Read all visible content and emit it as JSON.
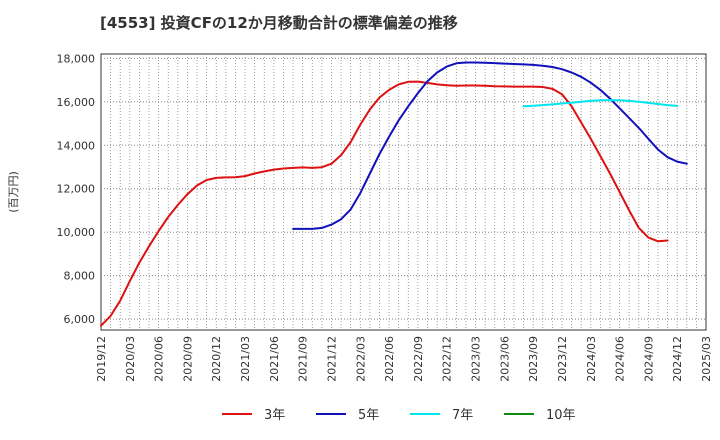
{
  "chart_data": {
    "type": "line",
    "title": "[4553]  投資CFの12か月移動合計の標準偏差の推移",
    "ylabel": "(百万円)",
    "xlabel": "",
    "ylim": [
      5500,
      18200
    ],
    "yticks": [
      6000,
      8000,
      10000,
      12000,
      14000,
      16000,
      18000
    ],
    "ytick_labels": [
      "6,000",
      "8,000",
      "10,000",
      "12,000",
      "14,000",
      "16,000",
      "18,000"
    ],
    "xlim": [
      "2019/12",
      "2025/03"
    ],
    "xtick_labels": [
      "2019/12",
      "2020/03",
      "2020/06",
      "2020/09",
      "2020/12",
      "2021/03",
      "2021/06",
      "2021/09",
      "2021/12",
      "2022/03",
      "2022/06",
      "2022/09",
      "2022/12",
      "2023/03",
      "2023/06",
      "2023/09",
      "2023/12",
      "2024/03",
      "2024/06",
      "2024/09",
      "2024/12",
      "2025/03"
    ],
    "grid": true,
    "series": [
      {
        "name": "3年",
        "color": "#dd1111",
        "start": "2019/12",
        "values": [
          5700,
          6150,
          6850,
          7750,
          8600,
          9350,
          10050,
          10700,
          11250,
          11750,
          12150,
          12400,
          12500,
          12520,
          12530,
          12580,
          12700,
          12800,
          12880,
          12930,
          12960,
          12980,
          12960,
          12990,
          13150,
          13550,
          14150,
          14950,
          15650,
          16200,
          16550,
          16800,
          16920,
          16930,
          16870,
          16800,
          16760,
          16740,
          16750,
          16750,
          16740,
          16720,
          16710,
          16700,
          16700,
          16700,
          16680,
          16600,
          16350,
          15800,
          15050,
          14300,
          13500,
          12700,
          11850,
          11000,
          10200,
          9750,
          9580,
          9620
        ]
      },
      {
        "name": "5年",
        "color": "#1111bb",
        "start": "2021/08",
        "values": [
          10150,
          10150,
          10150,
          10200,
          10350,
          10600,
          11050,
          11800,
          12700,
          13600,
          14400,
          15150,
          15800,
          16400,
          16950,
          17350,
          17620,
          17770,
          17810,
          17810,
          17800,
          17780,
          17760,
          17740,
          17720,
          17700,
          17660,
          17600,
          17500,
          17350,
          17150,
          16880,
          16550,
          16150,
          15700,
          15250,
          14800,
          14300,
          13800,
          13450,
          13250,
          13150
        ]
      },
      {
        "name": "7年",
        "color": "#00e5ee",
        "start": "2023/08",
        "values": [
          15800,
          15820,
          15850,
          15880,
          15920,
          15960,
          16000,
          16040,
          16070,
          16080,
          16070,
          16040,
          16000,
          15950,
          15900,
          15850,
          15810
        ]
      },
      {
        "name": "10年",
        "color": "#118811",
        "start": "2024/12",
        "values": []
      }
    ]
  }
}
